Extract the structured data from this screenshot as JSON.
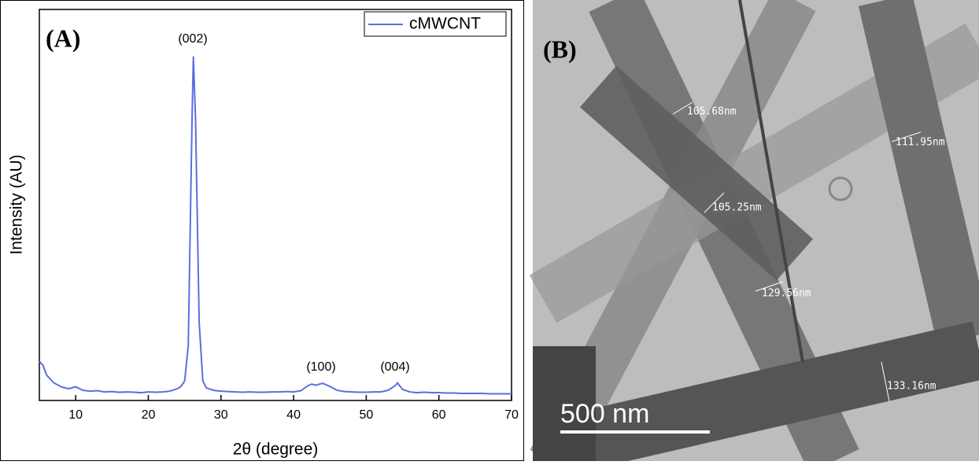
{
  "chart_data": {
    "type": "line",
    "panel_label": "(A)",
    "xlabel": "2θ (degree)",
    "ylabel": "Intensity (AU)",
    "x": [
      5,
      5.5,
      6,
      7,
      8,
      9,
      10,
      11,
      12,
      13,
      14,
      15,
      16,
      17,
      18,
      19,
      20,
      21,
      22,
      23,
      24,
      24.5,
      25,
      25.5,
      26,
      26.2,
      26.5,
      27,
      27.5,
      28,
      29,
      30,
      31,
      32,
      33,
      34,
      35,
      36,
      37,
      38,
      39,
      40,
      41,
      42,
      42.5,
      43,
      44,
      45,
      46,
      47,
      48,
      49,
      50,
      51,
      52,
      53,
      54,
      54.3,
      55,
      56,
      57,
      58,
      59,
      60,
      61,
      62,
      63,
      64,
      65,
      66,
      67,
      68,
      69,
      70
    ],
    "series": [
      {
        "name": "cMWCNT",
        "color": "#5b6ee1",
        "values": [
          10,
          9,
          6.5,
          4.5,
          3.5,
          3,
          3.5,
          2.6,
          2.4,
          2.5,
          2.2,
          2.3,
          2.1,
          2.2,
          2.1,
          2.0,
          2.2,
          2.1,
          2.2,
          2.4,
          3.0,
          3.6,
          5,
          14,
          70,
          88,
          72,
          20,
          5,
          3.2,
          2.6,
          2.4,
          2.3,
          2.2,
          2.1,
          2.2,
          2.1,
          2.1,
          2.2,
          2.2,
          2.3,
          2.2,
          2.5,
          3.8,
          4.2,
          3.9,
          4.4,
          3.6,
          2.6,
          2.3,
          2.2,
          2.1,
          2.1,
          2.2,
          2.2,
          2.6,
          3.8,
          4.5,
          2.8,
          2.2,
          2.0,
          2.1,
          2.0,
          2.0,
          1.9,
          1.9,
          1.8,
          1.8,
          1.8,
          1.8,
          1.7,
          1.7,
          1.7,
          1.7
        ]
      }
    ],
    "xlim": [
      5,
      70
    ],
    "xticks": [
      10,
      20,
      30,
      40,
      50,
      60,
      70
    ],
    "ylim": [
      0,
      100
    ],
    "annotations": [
      "(002)",
      "(100)",
      "(004)"
    ],
    "legend": "upper right"
  },
  "image_panel": {
    "label": "(B)",
    "measurements": [
      "105.68nm",
      "105.25nm",
      "111.95nm",
      "129.56nm",
      "133.16nm"
    ],
    "scale_bar": "500 nm"
  }
}
